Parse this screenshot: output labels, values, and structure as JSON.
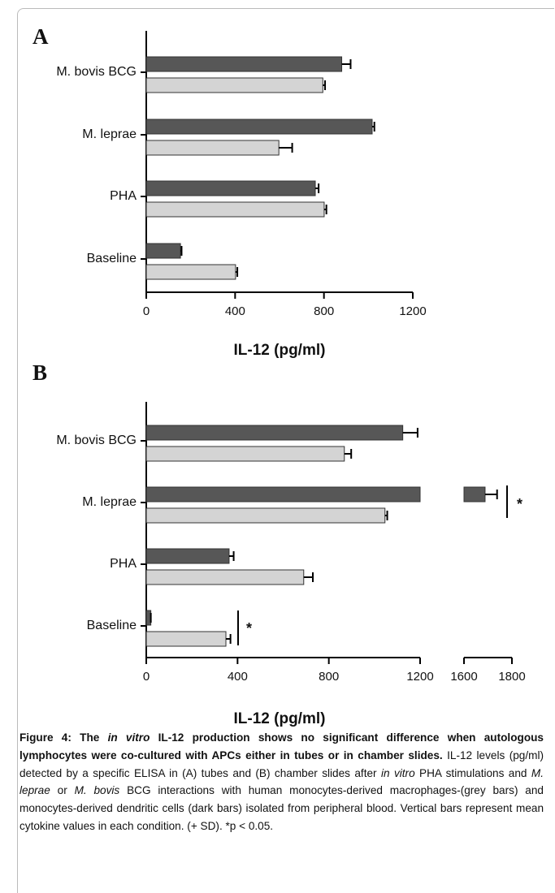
{
  "chart_data": [
    {
      "type": "bar",
      "orientation": "horizontal",
      "panel": "A",
      "categories": [
        "M. bovis BCG",
        "M. leprae",
        "PHA",
        "Baseline"
      ],
      "series": [
        {
          "color": "#575757",
          "values": [
            880,
            1017,
            761,
            154
          ],
          "errors": [
            40,
            10,
            15,
            5
          ]
        },
        {
          "color": "#d4d4d4",
          "values": [
            795,
            597,
            801,
            402
          ],
          "errors": [
            10,
            60,
            10,
            8
          ]
        }
      ],
      "xlabel": "IL-12 (pg/ml)",
      "xlim": [
        0,
        1200
      ],
      "xticks": [
        0,
        400,
        800,
        1200
      ]
    },
    {
      "type": "bar",
      "orientation": "horizontal",
      "panel": "B",
      "categories": [
        "M. bovis BCG",
        "M. leprae",
        "PHA",
        "Baseline"
      ],
      "series": [
        {
          "color": "#575757",
          "values": [
            1124,
            1688,
            363,
            20
          ],
          "errors": [
            65,
            50,
            20,
            0
          ]
        },
        {
          "color": "#d4d4d4",
          "values": [
            868,
            1046,
            690,
            349
          ],
          "errors": [
            30,
            10,
            40,
            20
          ]
        }
      ],
      "annotations": [
        "*",
        "*"
      ],
      "xlabel": "IL-12 (pg/ml)",
      "xlim": [
        0,
        1800
      ],
      "x_break": [
        1200,
        1600
      ],
      "xticks": [
        0,
        400,
        800,
        1200,
        1600,
        1800
      ]
    }
  ],
  "caption": [
    {
      "text": "Figure 4: The ",
      "style": "bold"
    },
    {
      "text": "in vitro",
      "style": "bold-italic"
    },
    {
      "text": " IL-12 production shows no significant difference when autologous lymphocytes were co-cultured with APCs either in tubes or in chamber slides.",
      "style": "bold"
    },
    {
      "text": " IL-12 levels (pg/ml) detected by a specific ELISA in (A) tubes and (B) chamber slides after ",
      "style": "normal"
    },
    {
      "text": "in vitro",
      "style": "italic"
    },
    {
      "text": " PHA stimulations and ",
      "style": "normal"
    },
    {
      "text": "M. leprae",
      "style": "italic"
    },
    {
      "text": " or ",
      "style": "normal"
    },
    {
      "text": "M. bovis",
      "style": "italic"
    },
    {
      "text": " BCG interactions with human monocytes-derived macrophages-(grey bars) and monocytes-derived dendritic cells (dark bars) isolated from peripheral blood. Vertical bars represent mean cytokine values in each condition. (+ SD). *p < 0.05.",
      "style": "normal"
    }
  ]
}
